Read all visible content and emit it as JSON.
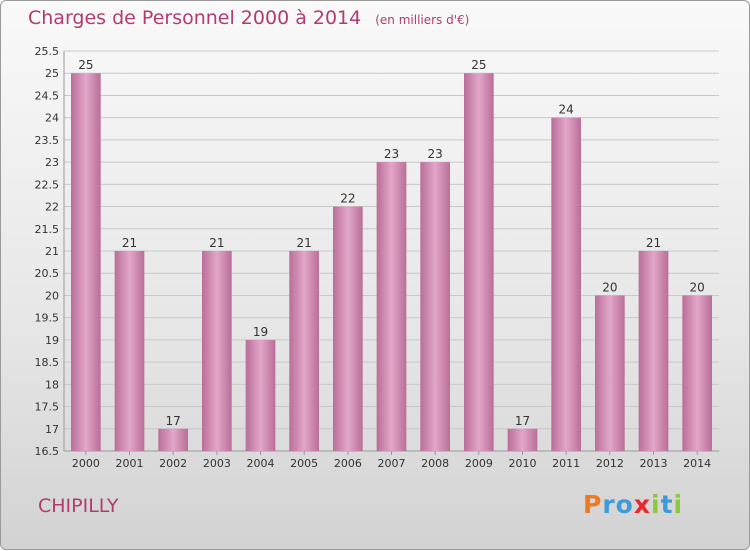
{
  "title": "Charges de Personnel 2000 à 2014",
  "subtitle": "(en milliers d'€)",
  "commune": "CHIPILLY",
  "logo": {
    "text": "Proxiti",
    "letters": [
      {
        "ch": "P",
        "color": "#f07820"
      },
      {
        "ch": "r",
        "color": "#3f9ad8"
      },
      {
        "ch": "o",
        "color": "#3f9ad8"
      },
      {
        "ch": "x",
        "color": "#e8262c"
      },
      {
        "ch": "i",
        "color": "#8cc83c"
      },
      {
        "ch": "t",
        "color": "#3f9ad8"
      },
      {
        "ch": "i",
        "color": "#8cc83c"
      }
    ]
  },
  "colors": {
    "bar_top": "#e2a6c8",
    "bar_bottom": "#b96e98",
    "title": "#b03c72"
  },
  "chart_data": {
    "type": "bar",
    "categories": [
      "2000",
      "2001",
      "2002",
      "2003",
      "2004",
      "2005",
      "2006",
      "2007",
      "2008",
      "2009",
      "2010",
      "2011",
      "2012",
      "2013",
      "2014"
    ],
    "values": [
      25,
      21,
      17,
      21,
      19,
      21,
      22,
      23,
      23,
      25,
      17,
      24,
      20,
      21,
      20
    ],
    "data_labels": [
      "25",
      "21",
      "17",
      "21",
      "19",
      "21",
      "22",
      "23",
      "23",
      "25",
      "17",
      "24",
      "20",
      "21",
      "20"
    ],
    "ylim": [
      16.5,
      25.5
    ],
    "yticks": [
      "16.5",
      "17",
      "17.5",
      "18",
      "18.5",
      "19",
      "19.5",
      "20",
      "20.5",
      "21",
      "21.5",
      "22",
      "22.5",
      "23",
      "23.5",
      "24",
      "24.5",
      "25",
      "25.5"
    ],
    "grid": true,
    "legend": "none"
  }
}
